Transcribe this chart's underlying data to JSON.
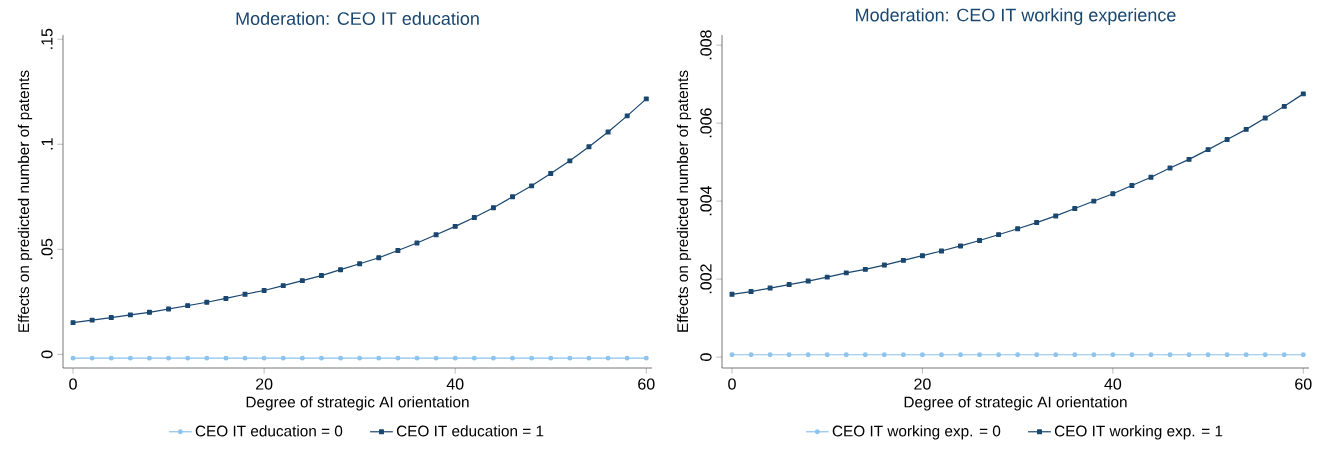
{
  "chart_data": [
    {
      "type": "line",
      "title": "Moderation: CEO IT education",
      "xlabel": "Degree of strategic AI orientation",
      "ylabel": "Effects on predicted number of patents",
      "x": [
        0,
        2,
        4,
        6,
        8,
        10,
        12,
        14,
        16,
        18,
        20,
        22,
        24,
        26,
        28,
        30,
        32,
        34,
        36,
        38,
        40,
        42,
        44,
        46,
        48,
        50,
        52,
        54,
        56,
        58,
        60
      ],
      "series": [
        {
          "name": "CEO IT education = 0",
          "color": "#8dc3ec",
          "marker": "circle",
          "values": [
            -0.0018,
            -0.0018,
            -0.0018,
            -0.0018,
            -0.0018,
            -0.0018,
            -0.0018,
            -0.0018,
            -0.0018,
            -0.0018,
            -0.0018,
            -0.0018,
            -0.0018,
            -0.0018,
            -0.0018,
            -0.0018,
            -0.0018,
            -0.0018,
            -0.0018,
            -0.0018,
            -0.0018,
            -0.0018,
            -0.0018,
            -0.0018,
            -0.0018,
            -0.0018,
            -0.0018,
            -0.0018,
            -0.0018,
            -0.0018,
            -0.0018
          ]
        },
        {
          "name": "CEO IT education = 1",
          "color": "#1a476f",
          "marker": "square",
          "values": [
            0.0151,
            0.0163,
            0.0175,
            0.0188,
            0.02,
            0.0216,
            0.0232,
            0.0248,
            0.0266,
            0.0286,
            0.0304,
            0.0327,
            0.0351,
            0.0375,
            0.0403,
            0.0431,
            0.046,
            0.0494,
            0.053,
            0.0569,
            0.0609,
            0.0651,
            0.0698,
            0.075,
            0.0802,
            0.0861,
            0.0921,
            0.0988,
            0.1058,
            0.1135,
            0.1216
          ]
        }
      ],
      "xlim": [
        -1.05,
        60.6
      ],
      "ylim": [
        -0.0065,
        0.152
      ],
      "xticks": [
        0,
        20,
        40,
        60
      ],
      "yticks": [
        0,
        {
          "value": 0.05,
          "label": ".05"
        },
        {
          "value": 0.1,
          "label": ".1"
        },
        {
          "value": 0.15,
          "label": ".15"
        }
      ],
      "grid": false,
      "legend": "bottom",
      "line_style": "solid"
    },
    {
      "type": "line",
      "title": "Moderation: CEO IT working experience",
      "xlabel": "Degree of strategic AI orientation",
      "ylabel": "Effects on predicted number of patents",
      "x": [
        0,
        2,
        4,
        6,
        8,
        10,
        12,
        14,
        16,
        18,
        20,
        22,
        24,
        26,
        28,
        30,
        32,
        34,
        36,
        38,
        40,
        42,
        44,
        46,
        48,
        50,
        52,
        54,
        56,
        58,
        60
      ],
      "series": [
        {
          "name": "CEO IT working exp. = 0",
          "color": "#8dc3ec",
          "marker": "circle",
          "values": [
            6e-05,
            6e-05,
            6e-05,
            6e-05,
            6e-05,
            6e-05,
            6e-05,
            6e-05,
            6e-05,
            6e-05,
            6e-05,
            6e-05,
            6e-05,
            6e-05,
            6e-05,
            6e-05,
            6e-05,
            6e-05,
            6e-05,
            6e-05,
            6e-05,
            6e-05,
            6e-05,
            6e-05,
            6e-05,
            6e-05,
            6e-05,
            6e-05,
            6e-05,
            6e-05,
            6e-05
          ]
        },
        {
          "name": "CEO IT working exp. = 1",
          "color": "#1a476f",
          "marker": "square",
          "values": [
            0.00161,
            0.00168,
            0.00177,
            0.00186,
            0.00195,
            0.00205,
            0.00216,
            0.00225,
            0.00236,
            0.00248,
            0.0026,
            0.00272,
            0.00285,
            0.00299,
            0.00314,
            0.00329,
            0.00345,
            0.00362,
            0.00381,
            0.004,
            0.00419,
            0.0044,
            0.00461,
            0.00485,
            0.00507,
            0.00532,
            0.00558,
            0.00584,
            0.00613,
            0.00643,
            0.00675
          ]
        }
      ],
      "xlim": [
        -1.05,
        60.6
      ],
      "ylim": [
        -0.00028,
        0.00826
      ],
      "xticks": [
        0,
        20,
        40,
        60
      ],
      "yticks": [
        0,
        {
          "value": 0.002,
          "label": ".002"
        },
        {
          "value": 0.004,
          "label": ".004"
        },
        {
          "value": 0.006,
          "label": ".006"
        },
        {
          "value": 0.008,
          "label": ".008"
        }
      ],
      "grid": false,
      "legend": "bottom",
      "line_style": "solid"
    }
  ]
}
